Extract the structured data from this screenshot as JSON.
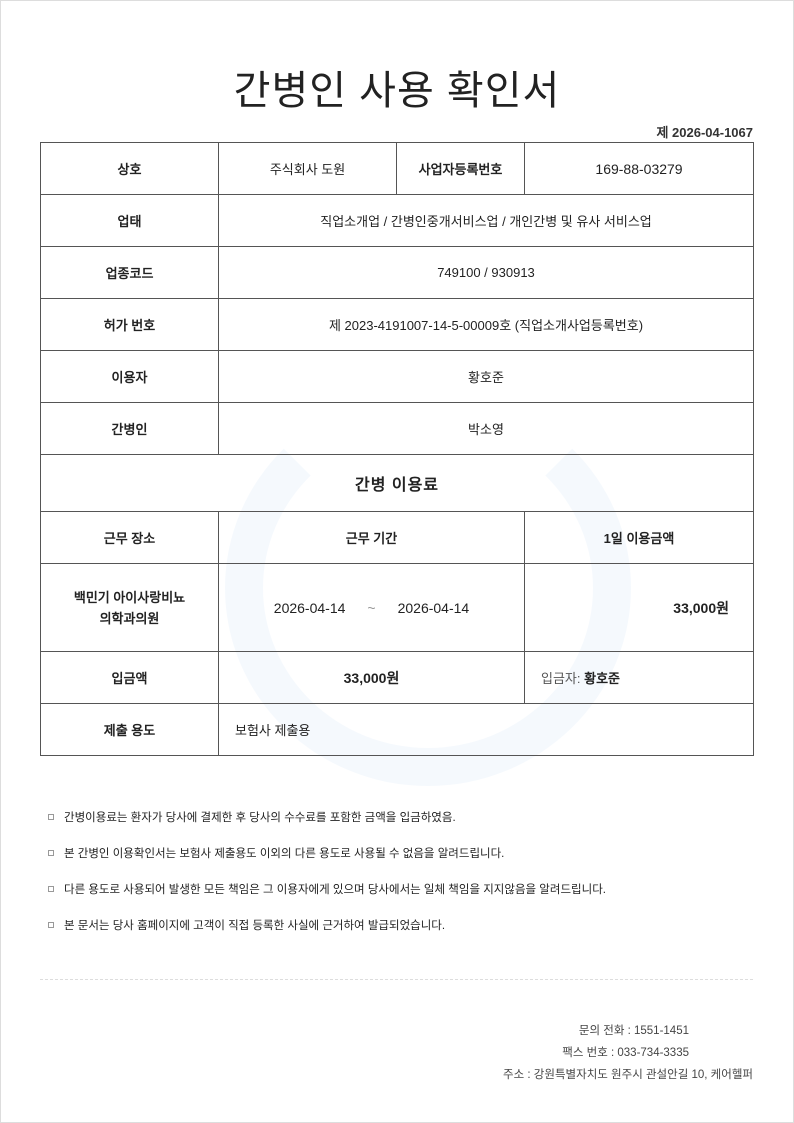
{
  "title": "간병인 사용 확인서",
  "doc_number": "제 2026-04-1067",
  "info": {
    "company_label": "상호",
    "company": "주식회사 도원",
    "bizno_label": "사업자등록번호",
    "bizno": "169-88-03279",
    "biztype_label": "업태",
    "biztype": "직업소개업 / 간병인중개서비스업 / 개인간병 및 유사 서비스업",
    "code_label": "업종코드",
    "code": "749100 / 930913",
    "license_label": "허가 번호",
    "license": "제 2023-4191007-14-5-00009호 (직업소개사업등록번호)",
    "user_label": "이용자",
    "user": "황호준",
    "caregiver_label": "간병인",
    "caregiver": "박소영"
  },
  "fee": {
    "section_title": "간병 이용료",
    "col_place": "근무 장소",
    "col_period": "근무 기간",
    "col_daily": "1일 이용금액",
    "place_line1": "백민기 아이사랑비뇨",
    "place_line2": "의학과의원",
    "start": "2026-04-14",
    "tilde": "~",
    "end": "2026-04-14",
    "daily": "33,000원",
    "deposit_label": "입금액",
    "deposit": "33,000원",
    "depositor_label": "입금자:",
    "depositor": "황호준",
    "purpose_label": "제출 용도",
    "purpose": "보험사 제출용"
  },
  "notes": [
    "간병이용료는 환자가 당사에 결제한 후 당사의 수수료를 포함한 금액을 입금하였음.",
    "본 간병인 이용확인서는 보험사 제출용도 이외의 다른 용도로 사용될 수 없음을 알려드립니다.",
    "다른 용도로 사용되어 발생한 모든 책임은 그 이용자에게 있으며 당사에서는 일체 책임을 지지않음을 알려드립니다.",
    "본 문서는 당사 홈페이지에 고객이 직접 등록한 사실에 근거하여 발급되었습니다."
  ],
  "footer": {
    "phone": "문의 전화 : 1551-1451",
    "fax": "팩스 번호 : 033-734-3335",
    "address": "주소 : 강원특별자치도 원주시 관설안길 10, 케어헬퍼"
  }
}
